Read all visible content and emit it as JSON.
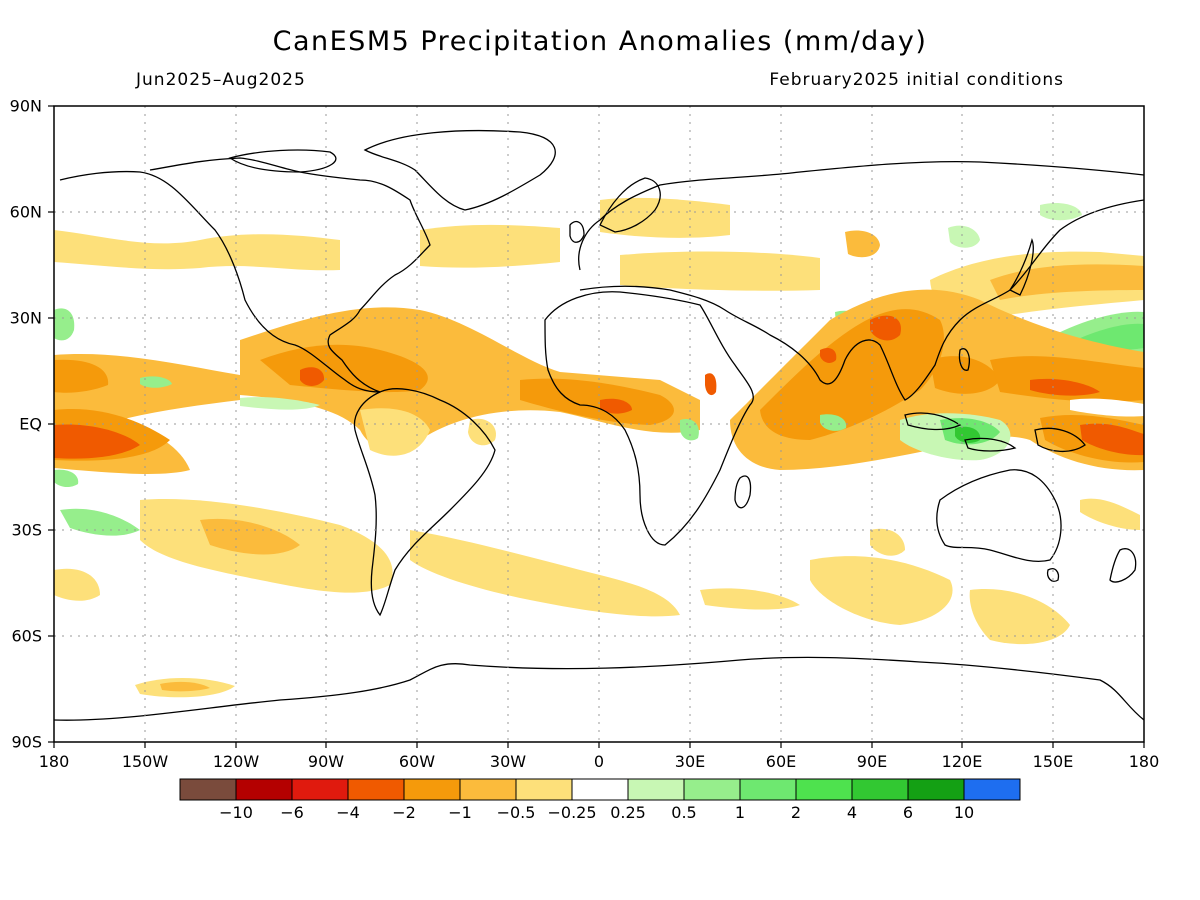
{
  "title": "CanESM5 Precipitation Anomalies (mm/day)",
  "subtitle_left": "Jun2025–Aug2025",
  "subtitle_right": "February2025 initial conditions",
  "lat_labels": [
    "90N",
    "60N",
    "30N",
    "EQ",
    "30S",
    "60S",
    "90S"
  ],
  "lon_labels": [
    "180",
    "150W",
    "120W",
    "90W",
    "60W",
    "30W",
    "0",
    "30E",
    "60E",
    "90E",
    "120E",
    "150E",
    "180"
  ],
  "colorbar": {
    "labels": [
      "−10",
      "−6",
      "−4",
      "−2",
      "−1",
      "−0.5",
      "−0.25",
      "0.25",
      "0.5",
      "1",
      "2",
      "4",
      "6",
      "10"
    ],
    "colors": [
      "#7a4b3c",
      "#b40000",
      "#e01a0e",
      "#f05a00",
      "#f59a0b",
      "#fbbb3c",
      "#fde07a",
      "#ffffff",
      "#c8f7b4",
      "#96ee8c",
      "#6ee870",
      "#4ee24e",
      "#32c832",
      "#14a014",
      "#1e6ef0"
    ]
  }
}
